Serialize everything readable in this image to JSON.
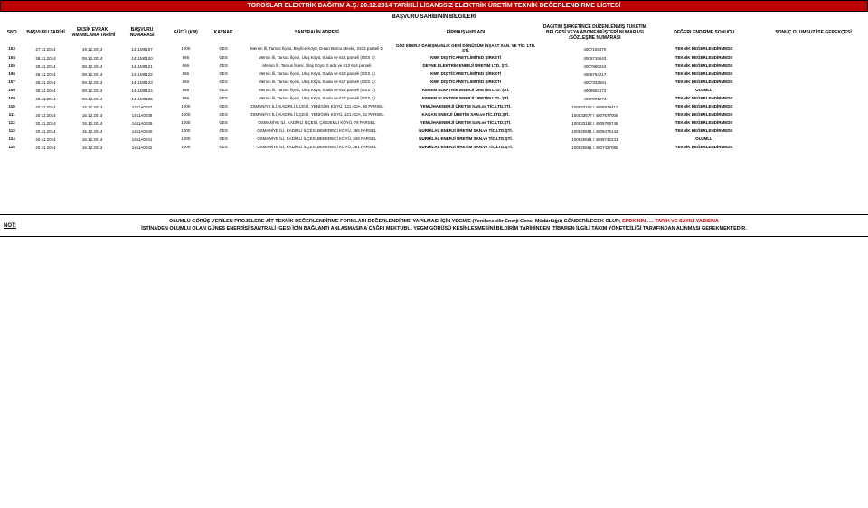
{
  "title": "TOROSLAR ELEKTRİK DAĞITIM A.Ş. 20.12.2014 TARİHLİ LİSANSSIZ ELEKTRİK ÜRETİM TEKNİK DEĞERLENDİRME LİSTESİ",
  "sectionTitle": "BAŞVURU SAHİBİNİN BİLGİLERİ",
  "headers": {
    "sno": "SNO",
    "basvuruTarihi": "BAŞVURU TARİHİ",
    "eksikEvrak": "EKSİK EVRAK TAMAMLAMA TARİHİ",
    "basvuruNo": "BAŞVURU NUMARASI",
    "gucu": "GÜCÜ (kW)",
    "kaynak": "KAYNAK",
    "santralAdres": "SANTRALİN ADRESİ",
    "firma": "FİRMA/ŞAHIS ADI",
    "dagitim": "DAĞITIM ŞİRKETİNCE DÜZENLENMİŞ TÜKETİM BELGESİ VEYA ABONE/MÜŞTERİ NUMARASI /SÖZLEŞME NUMARASI",
    "sonuc": "DEĞERLENDİRME SONUCU",
    "gerekce": "SONUÇ OLUMSUZ İSE GEREKÇESİ"
  },
  "rows": [
    {
      "sno": "103",
      "bt": "27.11.2014",
      "ee": "19.12.2014",
      "bn": "1411M0107",
      "g": "1000",
      "k": "GES",
      "adr": "Mersin İli, Tarsus İlçesi, Beylice Köyü, Dısan Burnu Mevkii, 2332 parseli D",
      "firma": "GÖZ ENERJİ DANIŞMANLIK GERİ DÖNÜŞÜM İNŞAAT SAN. VE TİC. LTD. ŞTİ.",
      "dag": "4007192470",
      "sonuc": "TEKNİK DEĞERLENDİRMEDE",
      "ger": ""
    },
    {
      "sno": "104",
      "bt": "28.11.2014",
      "ee": "08.12.2014",
      "bn": "1411M0120",
      "g": "966",
      "k": "GES",
      "adr": "Mersin İli, Tarsus İlçesi, Ulaş Köyü, 0 ada ve 614 parseli (GES 1)",
      "firma": "KMR DIŞ TİCARET LİMİTED ŞİRKETİ",
      "dag": "4009715643",
      "sonuc": "TEKNİK DEĞERLENDİRMEDE",
      "ger": ""
    },
    {
      "sno": "105",
      "bt": "28.11.2014",
      "ee": "08.12.2014",
      "bn": "1411M0121",
      "g": "966",
      "k": "GES",
      "adr": "Mersin İli, Tarsus İlçesi, Ulaş Köyü, 0 ada ve 613 614 parseli",
      "firma": "DEFNE ELEKTRİK ENERJİ ÜRETİM LTD. ŞTİ.",
      "dag": "4007860224",
      "sonuc": "TEKNİK DEĞERLENDİRMEDE",
      "ger": ""
    },
    {
      "sno": "106",
      "bt": "28.11.2014",
      "ee": "08.12.2014",
      "bn": "1411M0122",
      "g": "966",
      "k": "GES",
      "adr": "Mersin İli, Tarsus İlçesi, Ulaş Köyü, 0 ada ve 613 parseli (GES 2)",
      "firma": "KMR DIŞ TİCARET LİMİTED ŞİRKETİ",
      "dag": "4008764217",
      "sonuc": "TEKNİK DEĞERLENDİRMEDE",
      "ger": ""
    },
    {
      "sno": "107",
      "bt": "28.11.2014",
      "ee": "09.12.2014",
      "bn": "1411M0123",
      "g": "660",
      "k": "GES",
      "adr": "Mersin İli, Tarsus İlçesi, Ulaş Köyü, 0 ada ve 617 parseli (GES 3)",
      "firma": "KMR DIŞ TİCARET LİMİTED ŞİRKETİ",
      "dag": "4007332581",
      "sonuc": "TEKNİK DEĞERLENDİRMEDE",
      "ger": ""
    },
    {
      "sno": "108",
      "bt": "28.11.2014",
      "ee": "08.12.2014",
      "bn": "1411M0124",
      "g": "966",
      "k": "GES",
      "adr": "Mersin İli, Tarsus İlçesi, Ulaş Köyü, 0 ada ve 614 parseli (GES 1)",
      "firma": "KEREM ELEKTRİK ENERJİ ÜRETİM LTD. ŞTİ.",
      "dag": "4006563172",
      "sonuc": "OLUMLU",
      "ger": ""
    },
    {
      "sno": "109",
      "bt": "28.11.2014",
      "ee": "08.12.2014",
      "bn": "1411M0125",
      "g": "966",
      "k": "GES",
      "adr": "Mersin İli, Tarsus İlçesi, Ulaş Köyü, 0 ada ve 613 parseli (GES 2)",
      "firma": "KEREM ELEKTRİK ENERJİ ÜRETİM LTD. ŞTİ.",
      "dag": "4007071274",
      "sonuc": "TEKNİK DEĞERLENDİRMEDE",
      "ger": ""
    },
    {
      "sno": "110",
      "bt": "20.11.2014",
      "ee": "15.12.2014",
      "bn": "1411A0037",
      "g": "1000",
      "k": "GES",
      "adr": "OSMANİYE İLİ, KADİRLİ İLÇESİ, YENİGÜN KÖYÜ, 121 ADA, 30 PARSEL",
      "firma": "YEMLİHA ENERJİ ÜRETİM SAN.ve TİC.LTD.ŞTİ.",
      "dag": "100833162 / 4008579412",
      "sonuc": "TEKNİK DEĞERLENDİRMEDE",
      "ger": ""
    },
    {
      "sno": "111",
      "bt": "20.11.2014",
      "ee": "15.12.2014",
      "bn": "1411A0038",
      "g": "1000",
      "k": "GES",
      "adr": "OSMANİYE İLİ, KADİRLİ İLÇESİ, YENİGÜN KÖYÜ, 121 ADA, 31 PARSEL",
      "firma": "KAGAN ENERJİ ÜRETİM SAN.ve TİC.LTD.ŞTİ.",
      "dag": "100833677 / 4007677006",
      "sonuc": "TEKNİK DEĞERLENDİRMEDE",
      "ger": ""
    },
    {
      "sno": "112",
      "bt": "20.11.2014",
      "ee": "15.12.2014",
      "bn": "1411A0039",
      "g": "1000",
      "k": "GES",
      "adr": "OSMANİYE İLİ, KADİRLİ İLÇESİ, ÇİĞDEMLİ KÖYÜ, 78 PARSEL",
      "firma": "YEMLİHA ENERJİ ÜRETİM SAN.ve TİC.LTD.ŞTİ.",
      "dag": "100833162 / 4009769746",
      "sonuc": "TEKNİK DEĞERLENDİRMEDE",
      "ger": ""
    },
    {
      "sno": "113",
      "bt": "20.11.2014",
      "ee": "15.12.2014",
      "bn": "1411A0040",
      "g": "1000",
      "k": "GES",
      "adr": "OSMANİYE İLİ, KADİRLİ İLÇESİ,BEKERECİ KÖYÜ, 365 PARSEL",
      "firma": "NURHİLAL ENERJİ ÜRETİM SAN.ve TİC.LTD.ŞTİ.",
      "dag": "100820681 / 4009475142",
      "sonuc": "TEKNİK DEĞERLENDİRMEDE",
      "ger": ""
    },
    {
      "sno": "114",
      "bt": "20.11.2014",
      "ee": "15.12.2014",
      "bn": "1411A0041",
      "g": "1000",
      "k": "GES",
      "adr": "OSMANİYE İLİ, KADİRLİ İLÇESİ,BEKERECİ KÖYÜ, 349 PARSEL",
      "firma": "NURHİLAL ENERJİ ÜRETİM SAN.ve TİC.LTD.ŞTİ.",
      "dag": "100820681 / 4008742241",
      "sonuc": "OLUMLU",
      "ger": ""
    },
    {
      "sno": "115",
      "bt": "20.11.2014",
      "ee": "15.12.2014",
      "bn": "1411A0042",
      "g": "1000",
      "k": "GES",
      "adr": "OSMANİYE İLİ, KADİRLİ İLÇESİ,BEKERECİ KÖYÜ, 351 PARSEL",
      "firma": "NURHİLAL ENERJİ ÜRETİM SAN.ve TİC.LTD.ŞTİ.",
      "dag": "100820681 / 4007427085",
      "sonuc": "TEKNİK DEĞERLENDİRMEDE",
      "ger": ""
    }
  ],
  "footnote": {
    "label": "NOT:",
    "line1a": "OLUMLU GÖRÜŞ VERİLEN PROJELERE AİT TEKNİK DEĞERLENDİRME FORMLARI DEĞERLENDİRME YAPILMASI İÇİN YEGM'E (Yenilenebilir Enerji Genel Müdürlüğü) GÖNDERİLECEK OLUP; ",
    "line1b": "EPDK'NIN …. TARİH VE SAYILI YAZISINA",
    "line2": "İSTİNADEN OLUMLU OLAN GÜNEŞ ENERJİSİ SANTRALİ (GES) İÇİN BAĞLANTI ANLAŞMASINA ÇAĞRI MEKTUBU, YEGM GÖRÜŞÜ KESİNLEŞMESİNİ BİLDİRİM TARİHİNDEN İTİBAREN İLGİLİ TAKIM YÖNETİCİLİĞİ TARAFINDAN ALINMASI GEREKMEKTEDİR."
  },
  "colors": {
    "headerBg": "#c00000",
    "headerFg": "#ffffff",
    "red": "#c00000"
  }
}
